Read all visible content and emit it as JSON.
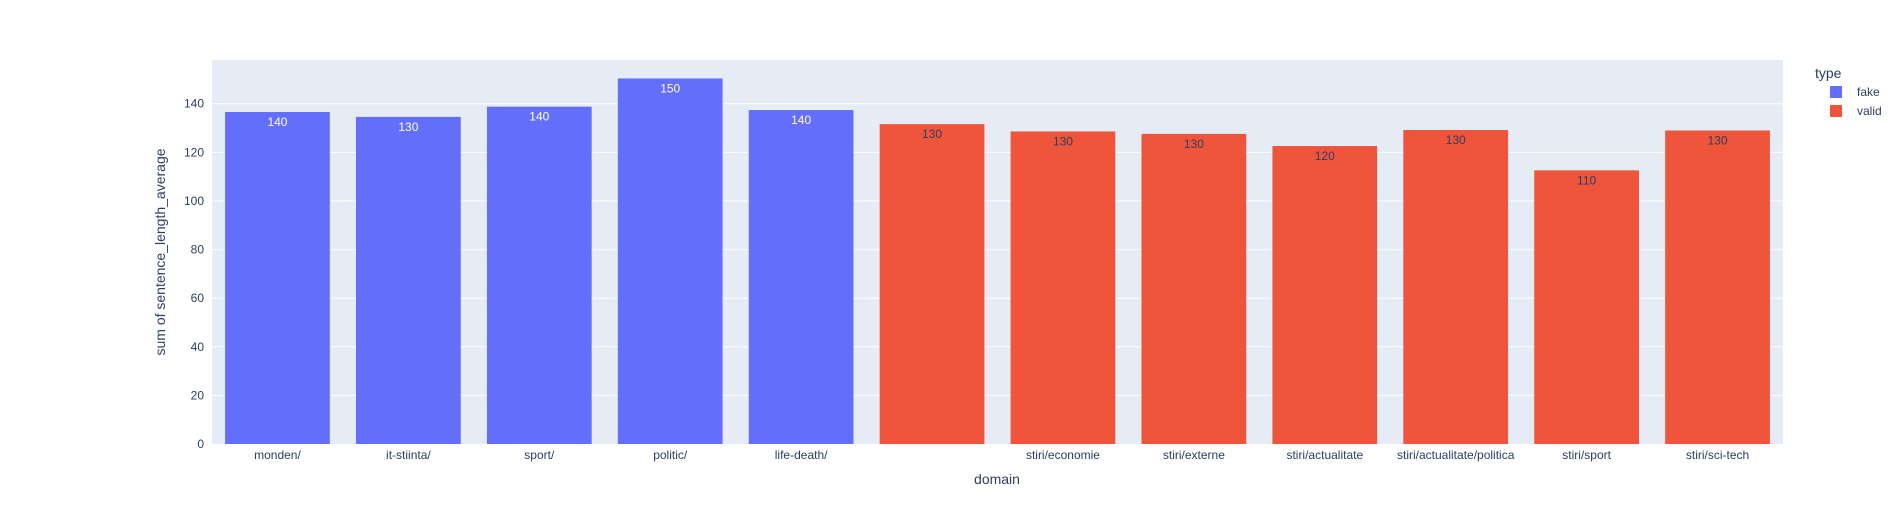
{
  "chart_data": {
    "type": "bar",
    "xlabel": "domain",
    "ylabel": "sum of sentence_length_average",
    "ylim": [
      0,
      158
    ],
    "yticks": [
      0,
      20,
      40,
      60,
      80,
      100,
      120,
      140
    ],
    "grid": true,
    "legend": {
      "title": "type",
      "placement": "top-right",
      "entries": [
        {
          "name": "fake",
          "color": "#636efa"
        },
        {
          "name": "valid",
          "color": "#ef553b"
        }
      ]
    },
    "bars": [
      {
        "category": "monden/",
        "type": "fake",
        "value": 136.6,
        "label": "140"
      },
      {
        "category": "it-stiinta/",
        "type": "fake",
        "value": 134.6,
        "label": "130"
      },
      {
        "category": "sport/",
        "type": "fake",
        "value": 138.8,
        "label": "140"
      },
      {
        "category": "politic/",
        "type": "fake",
        "value": 150.4,
        "label": "150"
      },
      {
        "category": "life-death/",
        "type": "fake",
        "value": 137.4,
        "label": "140"
      },
      {
        "category": "",
        "type": "valid",
        "value": 131.6,
        "label": "130"
      },
      {
        "category": "stiri/economie",
        "type": "valid",
        "value": 128.6,
        "label": "130"
      },
      {
        "category": "stiri/externe",
        "type": "valid",
        "value": 127.6,
        "label": "130"
      },
      {
        "category": "stiri/actualitate",
        "type": "valid",
        "value": 122.6,
        "label": "120"
      },
      {
        "category": "stiri/actualitate/politica",
        "type": "valid",
        "value": 129.2,
        "label": "130"
      },
      {
        "category": "stiri/sport",
        "type": "valid",
        "value": 112.6,
        "label": "110"
      },
      {
        "category": "stiri/sci-tech",
        "type": "valid",
        "value": 129.0,
        "label": "130"
      }
    ]
  },
  "colors": {
    "plot_background": "#e5ecf6",
    "grid": "#ffffff",
    "text": "#2a3f5f",
    "fake": "#636efa",
    "valid": "#ef553b"
  }
}
